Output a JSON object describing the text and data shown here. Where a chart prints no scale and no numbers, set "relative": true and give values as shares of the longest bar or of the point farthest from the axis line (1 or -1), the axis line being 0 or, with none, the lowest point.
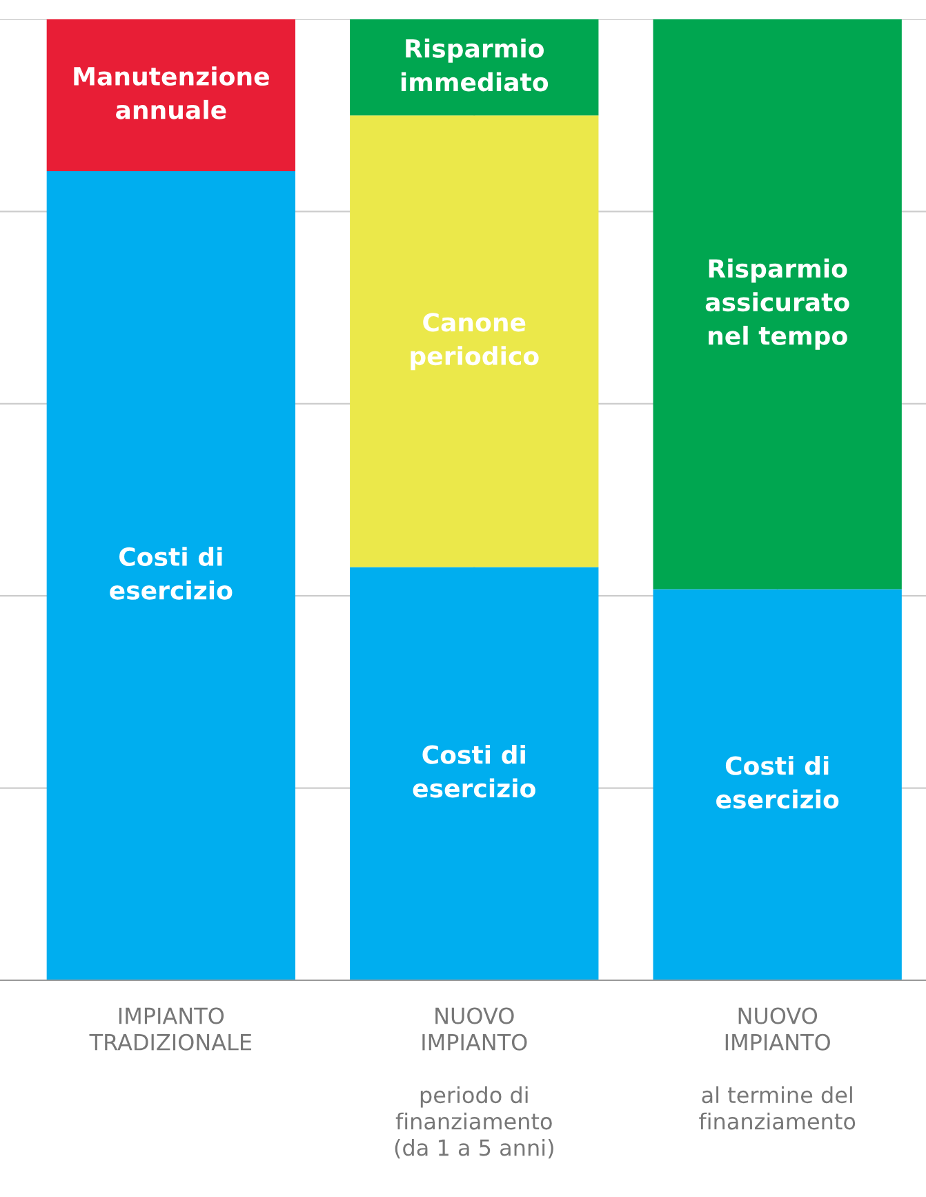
{
  "chart_data": {
    "type": "bar",
    "stacked": true,
    "relative": true,
    "grid": "y",
    "legend": false,
    "categories": [
      "IMPIANTO\nTRADIZIONALE",
      "NUOVO\nIMPIANTO\n\nperiodo di\nfinanziamento\n(da 1 a 5 anni)",
      "NUOVO\nIMPIANTO\n\nal termine del\nfinanziamento"
    ],
    "series": [
      {
        "name": "Costi di\nesercizio",
        "color": "#00aeef",
        "values": [
          0.842,
          0.43,
          0.407
        ]
      },
      {
        "name": "Manutenzione\nannuale",
        "color": "#e81e36",
        "values": [
          0.158,
          null,
          null
        ]
      },
      {
        "name": "Canone\nperiodico",
        "color": "#ebe84a",
        "values": [
          null,
          0.47,
          null
        ]
      },
      {
        "name": "Risparmio\nimmediato",
        "color": "#00a650",
        "values": [
          null,
          0.1,
          null
        ]
      },
      {
        "name": "Risparmio\nassicurato\nnel tempo",
        "color": "#00a650",
        "values": [
          null,
          null,
          0.593
        ]
      }
    ]
  }
}
